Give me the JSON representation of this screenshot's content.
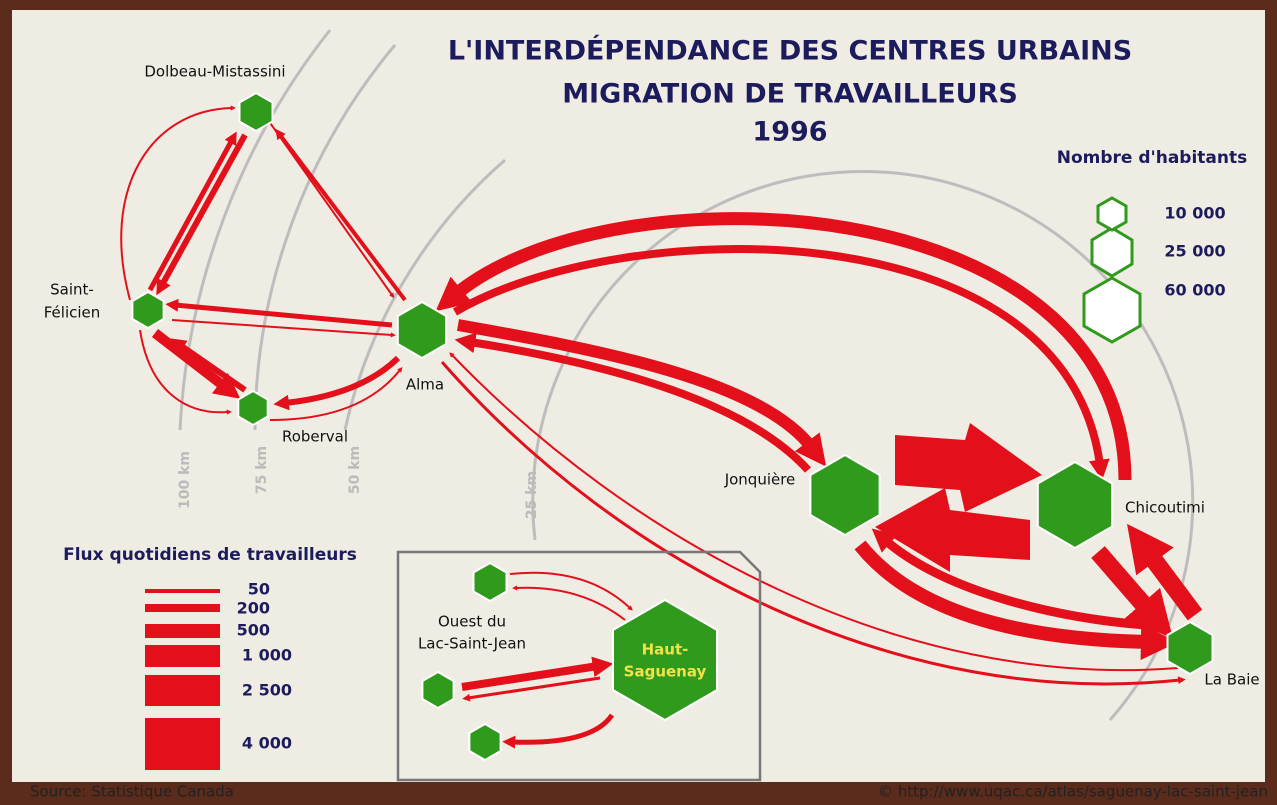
{
  "title": {
    "line1": "L'INTERDÉPENDANCE DES CENTRES URBAINS",
    "line2": "MIGRATION DE TRAVAILLEURS",
    "line3": "1996"
  },
  "places": {
    "dolbeau": "Dolbeau-Mistassini",
    "felicien1": "Saint-",
    "felicien2": "Félicien",
    "roberval": "Roberval",
    "alma": "Alma",
    "jonquiere": "Jonquière",
    "chicoutimi": "Chicoutimi",
    "labaie": "La Baie"
  },
  "distances": [
    "100 km",
    "75 km",
    "50 km",
    "25 km"
  ],
  "population_legend": {
    "title": "Nombre d'habitants",
    "labels": [
      "10 000",
      "25 000",
      "60 000"
    ]
  },
  "flow_legend": {
    "title": "Flux quotidiens de travailleurs",
    "labels": [
      "50",
      "200",
      "500",
      "1 000",
      "2 500",
      "4 000"
    ]
  },
  "inset": {
    "ouest1": "Ouest du",
    "ouest2": "Lac-Saint-Jean",
    "haut1": "Haut-",
    "haut2": "Saguenay"
  },
  "source": "Source: Statistique Canada",
  "credit": "© http://www.uqac.ca/atlas/saguenay-lac-saint-jean"
}
